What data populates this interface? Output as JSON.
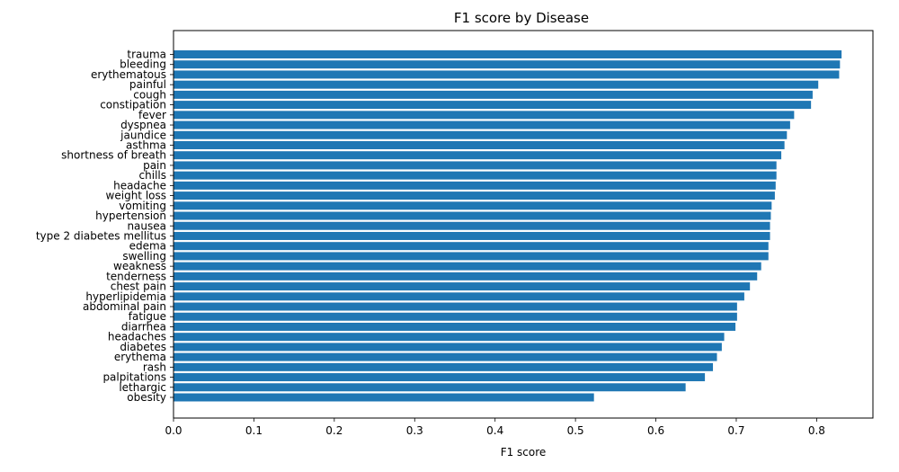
{
  "chart_data": {
    "type": "bar",
    "orientation": "horizontal",
    "title": "F1 score by Disease",
    "xlabel": "F1 score",
    "ylabel": "",
    "xlim": [
      0,
      0.87
    ],
    "xticks": [
      "0.0",
      "0.1",
      "0.2",
      "0.3",
      "0.4",
      "0.5",
      "0.6",
      "0.7",
      "0.8"
    ],
    "grid": false,
    "bar_color": "#1f77b4",
    "categories": [
      "trauma",
      "bleeding",
      "erythematous",
      "painful",
      "cough",
      "constipation",
      "fever",
      "dyspnea",
      "jaundice",
      "asthma",
      "shortness of breath",
      "pain",
      "chills",
      "headache",
      "weight loss",
      "vomiting",
      "hypertension",
      "nausea",
      "type 2 diabetes mellitus",
      "edema",
      "swelling",
      "weakness",
      "tenderness",
      "chest pain",
      "hyperlipidemia",
      "abdominal pain",
      "fatigue",
      "diarrhea",
      "headaches",
      "diabetes",
      "erythema",
      "rash",
      "palpitations",
      "lethargic",
      "obesity"
    ],
    "values": [
      0.831,
      0.829,
      0.828,
      0.802,
      0.795,
      0.793,
      0.772,
      0.767,
      0.763,
      0.76,
      0.756,
      0.75,
      0.75,
      0.749,
      0.748,
      0.744,
      0.743,
      0.742,
      0.742,
      0.74,
      0.74,
      0.731,
      0.726,
      0.717,
      0.71,
      0.701,
      0.701,
      0.699,
      0.685,
      0.682,
      0.676,
      0.671,
      0.661,
      0.637,
      0.523
    ]
  }
}
